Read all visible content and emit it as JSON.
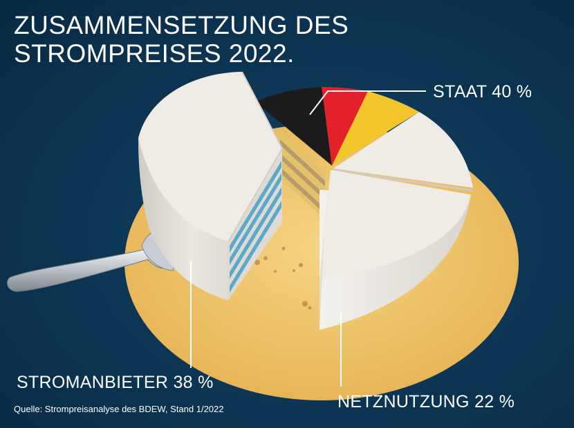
{
  "title_lines": [
    "ZUSAMMENSETZUNG DES",
    "STROMPREISES 2022."
  ],
  "source": "Quelle: Strompreisanalyse des BDEW, Stand 1/2022",
  "chart_data": {
    "type": "pie",
    "title": "ZUSAMMENSETZUNG DES STROMPREISES 2022.",
    "unit": "%",
    "slices": [
      {
        "label": "STAAT",
        "value": 40,
        "display": "STAAT 40 %"
      },
      {
        "label": "STROMANBIETER",
        "value": 38,
        "display": "STROMANBIETER 38 %"
      },
      {
        "label": "NETZNUTZUNG",
        "value": 22,
        "display": "NETZNUTZUNG 22 %"
      }
    ]
  },
  "colors": {
    "background": "#0c3452",
    "plate": "#f1c76a",
    "cake_top": "#efece6",
    "cake_side": "#e6e3dd",
    "flag_black": "#1c1a1a",
    "flag_red": "#e3212a",
    "flag_gold": "#f2c52a",
    "layer_blue": "#5aa9c9"
  },
  "icons": [
    "cake-fork-icon"
  ]
}
